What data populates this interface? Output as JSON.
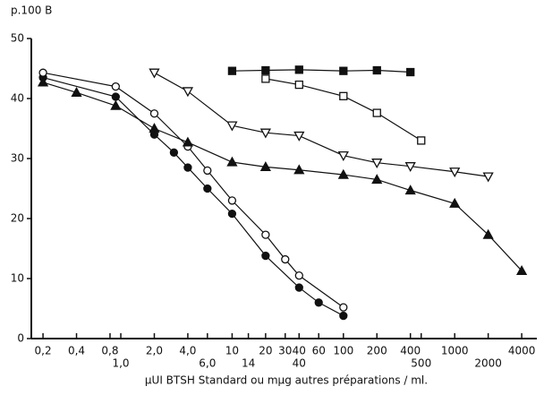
{
  "chart_data": {
    "type": "line",
    "y_label": "p.100 B",
    "x_label": "μUI BTSH Standard ou mμg autres préparations / ml.",
    "xscale": "log",
    "xlim": [
      0.157,
      5470
    ],
    "ylim": [
      0,
      50
    ],
    "yticks": [
      0,
      10,
      20,
      30,
      40,
      50
    ],
    "xticks": [
      {
        "value": 0.2,
        "label": "0,2"
      },
      {
        "value": 0.4,
        "label": "0,4"
      },
      {
        "value": 0.8,
        "label": "0,8"
      },
      {
        "value": 2,
        "label": "2,0"
      },
      {
        "value": 4,
        "label": "4,0"
      },
      10,
      20,
      30,
      40,
      60,
      100,
      200,
      400,
      1000,
      4000
    ],
    "xticks_row2": [
      {
        "value": 1,
        "label": "1,0"
      },
      {
        "value": 6,
        "label": "6,0"
      },
      14,
      40,
      500,
      2000
    ],
    "series": [
      {
        "color": "#111",
        "marker": "circle",
        "filled": true,
        "x": [
          0.2,
          0.9,
          2,
          3,
          4,
          6,
          10,
          20,
          40,
          60,
          100
        ],
        "values": [
          43.5,
          40.3,
          34,
          31,
          28.5,
          25,
          20.8,
          13.8,
          8.5,
          6,
          3.8
        ]
      },
      {
        "color": "#111",
        "marker": "circle",
        "filled": false,
        "x": [
          0.2,
          0.9,
          2,
          4,
          6,
          10,
          20,
          30,
          40,
          100
        ],
        "values": [
          44.3,
          42,
          37.5,
          32,
          28,
          23,
          17.3,
          13.2,
          10.5,
          5.2
        ]
      },
      {
        "color": "#111",
        "marker": "triangle",
        "filled": true,
        "x": [
          0.2,
          0.4,
          0.9,
          2,
          4,
          10,
          20,
          40,
          100,
          200,
          400,
          1000,
          2000,
          4000
        ],
        "values": [
          42.7,
          41,
          38.8,
          35,
          32.7,
          29.4,
          28.6,
          28.1,
          27.3,
          26.5,
          24.7,
          22.5,
          17.3,
          11.3
        ]
      },
      {
        "color": "#111",
        "marker": "triangle-down",
        "filled": false,
        "x": [
          2,
          4,
          10,
          20,
          40,
          100,
          200,
          400,
          1000,
          2000
        ],
        "values": [
          44.3,
          41.2,
          35.5,
          34.3,
          33.8,
          30.5,
          29.3,
          28.7,
          27.8,
          27
        ]
      },
      {
        "color": "#111",
        "marker": "square",
        "filled": true,
        "x": [
          10,
          20,
          40,
          100,
          200,
          400
        ],
        "values": [
          44.6,
          44.7,
          44.8,
          44.6,
          44.7,
          44.4
        ]
      },
      {
        "color": "#111",
        "marker": "square",
        "filled": false,
        "x": [
          20,
          40,
          100,
          200,
          500
        ],
        "values": [
          43.3,
          42.3,
          40.4,
          37.6,
          33
        ]
      }
    ]
  }
}
